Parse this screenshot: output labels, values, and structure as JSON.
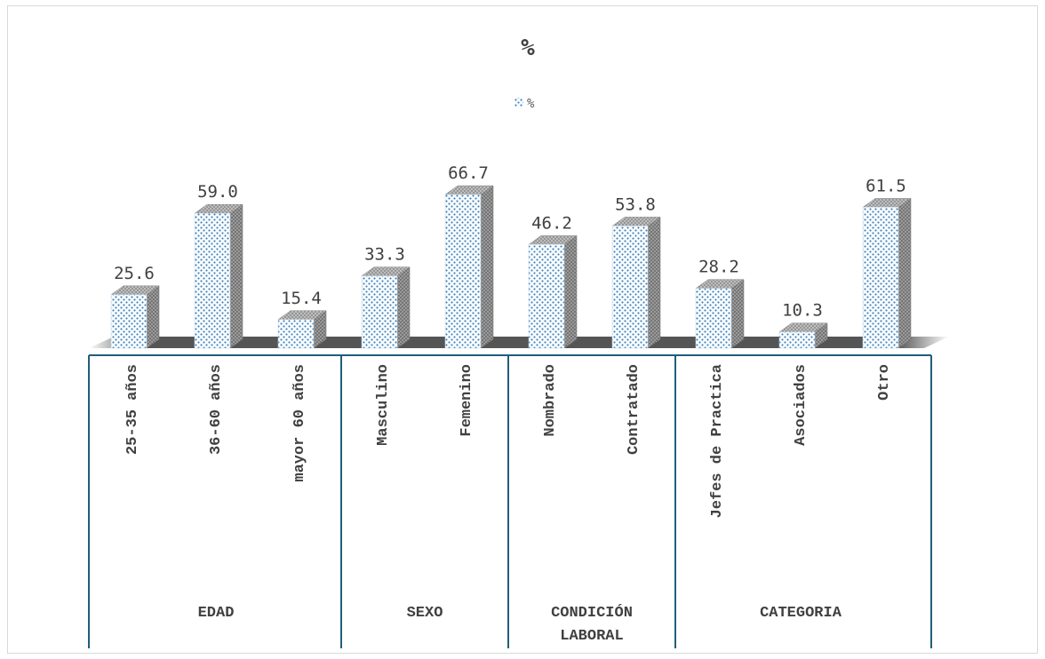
{
  "chart_data": {
    "type": "bar",
    "title": "%",
    "legend": {
      "entries": [
        "%"
      ],
      "position": "top"
    },
    "grid": false,
    "ylim": [
      0,
      70
    ],
    "series": [
      {
        "name": "%",
        "values": [
          25.6,
          59.0,
          15.4,
          33.3,
          66.7,
          46.2,
          53.8,
          28.2,
          10.3,
          61.5
        ]
      }
    ],
    "value_labels": [
      "25.6",
      "59.0",
      "15.4",
      "33.3",
      "66.7",
      "46.2",
      "53.8",
      "28.2",
      "10.3",
      "61.5"
    ],
    "categories": [
      "25-35 años",
      "36-60 años",
      "mayor 60 años",
      "Masculino",
      "Femenino",
      "Nombrado",
      "Contratado",
      "Jefes de Practica",
      "Asociados",
      "Otro"
    ],
    "groups": [
      {
        "label": [
          "EDAD"
        ],
        "span": 3
      },
      {
        "label": [
          "SEXO"
        ],
        "span": 2
      },
      {
        "label": [
          "CONDICIÓN",
          "LABORAL"
        ],
        "span": 2
      },
      {
        "label": [
          "CATEGORIA"
        ],
        "span": 3
      }
    ],
    "colors": {
      "dot": "#2e75b6",
      "bar_fill": "#f7fbfd",
      "side": "#7f7f7f",
      "floor": "#555555",
      "divider": "#1f5f7a"
    }
  }
}
